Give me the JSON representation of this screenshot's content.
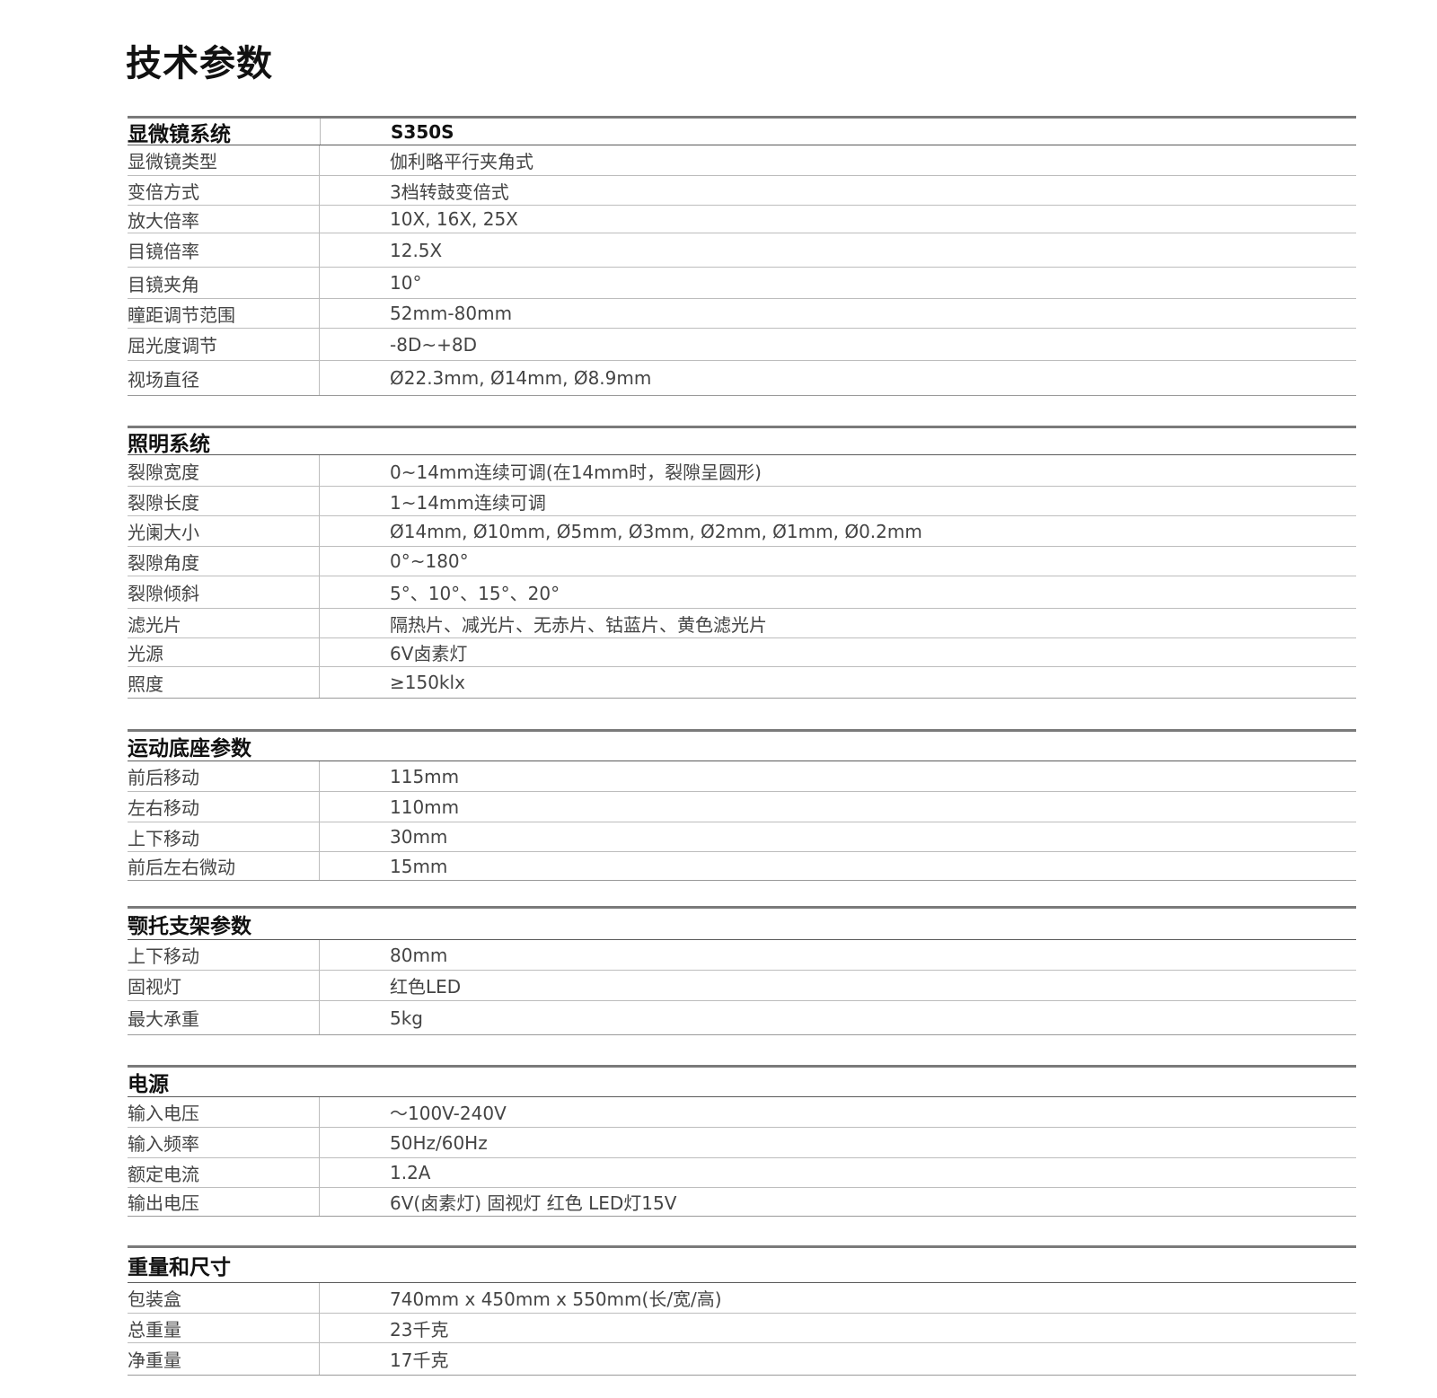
{
  "page": {
    "title": "技术参数"
  },
  "sections": [
    {
      "title": "显微镜系统",
      "model": "S350S",
      "rows": [
        {
          "label": "显微镜类型",
          "value": "伽利略平行夹角式"
        },
        {
          "label": "变倍方式",
          "value": "3档转鼓变倍式"
        },
        {
          "label": "放大倍率",
          "value": "10X, 16X, 25X"
        },
        {
          "label": "目镜倍率",
          "value": "12.5X"
        },
        {
          "label": "目镜夹角",
          "value": "10°"
        },
        {
          "label": "瞳距调节范围",
          "value": "52mm-80mm"
        },
        {
          "label": "屈光度调节",
          "value": "-8D~+8D"
        },
        {
          "label": "视场直径",
          "value": "Ø22.3mm, Ø14mm, Ø8.9mm"
        }
      ]
    },
    {
      "title": "照明系统",
      "model": "",
      "rows": [
        {
          "label": "裂隙宽度",
          "value": "0~14mm连续可调(在14mm时，裂隙呈圆形)"
        },
        {
          "label": "裂隙长度",
          "value": "1~14mm连续可调"
        },
        {
          "label": "光阑大小",
          "value": "Ø14mm, Ø10mm, Ø5mm, Ø3mm, Ø2mm, Ø1mm, Ø0.2mm"
        },
        {
          "label": "裂隙角度",
          "value": "0°~180°"
        },
        {
          "label": "裂隙倾斜",
          "value": "5°、10°、15°、20°"
        },
        {
          "label": "滤光片",
          "value": "隔热片、减光片、无赤片、钴蓝片、黄色滤光片"
        },
        {
          "label": "光源",
          "value": "6V卤素灯"
        },
        {
          "label": "照度",
          "value": "≥150klx"
        }
      ]
    },
    {
      "title": "运动底座参数",
      "model": "",
      "rows": [
        {
          "label": "前后移动",
          "value": "115mm"
        },
        {
          "label": "左右移动",
          "value": "110mm"
        },
        {
          "label": "上下移动",
          "value": "30mm"
        },
        {
          "label": "前后左右微动",
          "value": "15mm"
        }
      ]
    },
    {
      "title": "颚托支架参数",
      "model": "",
      "rows": [
        {
          "label": "上下移动",
          "value": "80mm"
        },
        {
          "label": "固视灯",
          "value": "红色LED"
        },
        {
          "label": "最大承重",
          "value": "5kg"
        }
      ]
    },
    {
      "title": "电源",
      "model": "",
      "rows": [
        {
          "label": "输入电压",
          "value": "～100V-240V"
        },
        {
          "label": "输入频率",
          "value": "50Hz/60Hz"
        },
        {
          "label": "额定电流",
          "value": "1.2A"
        },
        {
          "label": "输出电压",
          "value": "6V(卤素灯) 固视灯 红色 LED灯15V"
        }
      ]
    },
    {
      "title": "重量和尺寸",
      "model": "",
      "rows": [
        {
          "label": "包装盒",
          "value": "740mm x 450mm x 550mm(长/宽/高)"
        },
        {
          "label": "总重量",
          "value": "23千克"
        },
        {
          "label": "净重量",
          "value": "17千克"
        }
      ]
    }
  ]
}
